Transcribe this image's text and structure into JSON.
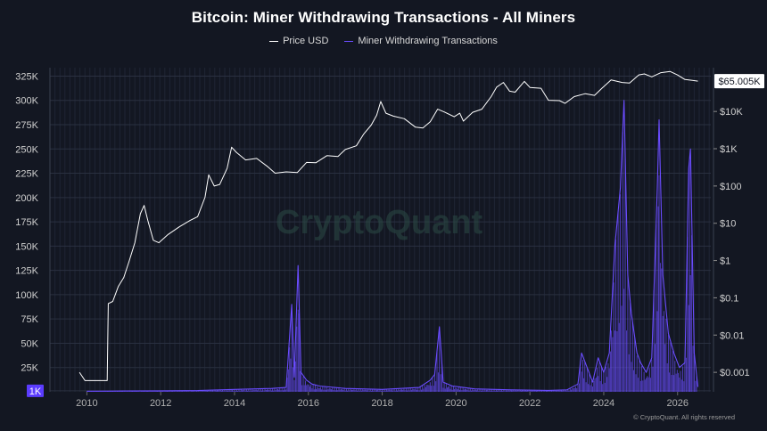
{
  "chart_data": {
    "type": "line",
    "title": "Bitcoin: Miner Withdrawing Transactions - All Miners",
    "legend": [
      {
        "name": "Price USD",
        "color": "#ffffff"
      },
      {
        "name": "Miner Withdrawing Transactions",
        "color": "#6a4cff"
      }
    ],
    "legend_position": "top-center",
    "grid": true,
    "x_axis": {
      "ticks": [
        "2010",
        "2012",
        "2014",
        "2016",
        "2018",
        "2020",
        "2022",
        "2024",
        "2026"
      ],
      "range": [
        2009.0,
        2026.9
      ]
    },
    "left_axis": {
      "ticks": [
        "325K",
        "300K",
        "275K",
        "250K",
        "225K",
        "200K",
        "175K",
        "150K",
        "125K",
        "100K",
        "75K",
        "50K",
        "25K",
        "1K"
      ],
      "tick_values": [
        325000,
        300000,
        275000,
        250000,
        225000,
        200000,
        175000,
        150000,
        125000,
        100000,
        75000,
        50000,
        25000,
        1000
      ],
      "highlight_tick": "1K",
      "range": [
        0,
        330000
      ]
    },
    "right_axis": {
      "scale": "log",
      "ticks": [
        "$10K",
        "$1K",
        "$100",
        "$10",
        "$1",
        "$0.1",
        "$0.01",
        "$0.001"
      ],
      "tick_values": [
        10000,
        1000,
        100,
        10,
        1,
        0.1,
        0.01,
        0.001
      ],
      "range": [
        0.0003,
        120000
      ],
      "current_label": "$65.005K",
      "current_value": 65005
    },
    "series": [
      {
        "name": "Price USD",
        "axis": "right",
        "color": "#ffffff",
        "points": [
          [
            2009.8,
            0.001
          ],
          [
            2009.95,
            0.0006
          ],
          [
            2010.1,
            0.0006
          ],
          [
            2010.3,
            0.0006
          ],
          [
            2010.55,
            0.0006
          ],
          [
            2010.58,
            0.07
          ],
          [
            2010.7,
            0.08
          ],
          [
            2010.85,
            0.2
          ],
          [
            2011.0,
            0.35
          ],
          [
            2011.15,
            1.0
          ],
          [
            2011.3,
            3.0
          ],
          [
            2011.45,
            18
          ],
          [
            2011.55,
            30
          ],
          [
            2011.65,
            12
          ],
          [
            2011.8,
            3.5
          ],
          [
            2011.95,
            3.0
          ],
          [
            2012.2,
            5
          ],
          [
            2012.5,
            8
          ],
          [
            2012.8,
            12
          ],
          [
            2013.0,
            15
          ],
          [
            2013.2,
            50
          ],
          [
            2013.3,
            200
          ],
          [
            2013.45,
            100
          ],
          [
            2013.6,
            110
          ],
          [
            2013.8,
            300
          ],
          [
            2013.92,
            1100
          ],
          [
            2014.05,
            800
          ],
          [
            2014.3,
            500
          ],
          [
            2014.6,
            550
          ],
          [
            2014.9,
            330
          ],
          [
            2015.1,
            220
          ],
          [
            2015.4,
            240
          ],
          [
            2015.7,
            230
          ],
          [
            2015.95,
            430
          ],
          [
            2016.2,
            420
          ],
          [
            2016.5,
            650
          ],
          [
            2016.8,
            620
          ],
          [
            2017.0,
            950
          ],
          [
            2017.3,
            1200
          ],
          [
            2017.5,
            2500
          ],
          [
            2017.7,
            4300
          ],
          [
            2017.85,
            8000
          ],
          [
            2017.96,
            18500
          ],
          [
            2018.1,
            9000
          ],
          [
            2018.3,
            7500
          ],
          [
            2018.6,
            6400
          ],
          [
            2018.9,
            3800
          ],
          [
            2019.1,
            3600
          ],
          [
            2019.3,
            5300
          ],
          [
            2019.5,
            11500
          ],
          [
            2019.7,
            9500
          ],
          [
            2019.95,
            7200
          ],
          [
            2020.1,
            9000
          ],
          [
            2020.2,
            5500
          ],
          [
            2020.45,
            9500
          ],
          [
            2020.7,
            11500
          ],
          [
            2020.95,
            25000
          ],
          [
            2021.1,
            45000
          ],
          [
            2021.28,
            60000
          ],
          [
            2021.45,
            35000
          ],
          [
            2021.6,
            33000
          ],
          [
            2021.85,
            64000
          ],
          [
            2022.0,
            44000
          ],
          [
            2022.3,
            42000
          ],
          [
            2022.5,
            20000
          ],
          [
            2022.8,
            19500
          ],
          [
            2022.95,
            16500
          ],
          [
            2023.2,
            25000
          ],
          [
            2023.5,
            30000
          ],
          [
            2023.75,
            27000
          ],
          [
            2023.95,
            42000
          ],
          [
            2024.2,
            70000
          ],
          [
            2024.5,
            60000
          ],
          [
            2024.7,
            58000
          ],
          [
            2024.95,
            96000
          ],
          [
            2025.1,
            102000
          ],
          [
            2025.3,
            85000
          ],
          [
            2025.55,
            110000
          ],
          [
            2025.8,
            118000
          ],
          [
            2026.0,
            95000
          ],
          [
            2026.2,
            72000
          ],
          [
            2026.4,
            68000
          ],
          [
            2026.55,
            65005
          ]
        ]
      },
      {
        "name": "Miner Withdrawing Transactions",
        "axis": "left",
        "color": "#6a4cff",
        "points": [
          [
            2010.0,
            600
          ],
          [
            2011.0,
            800
          ],
          [
            2012.0,
            1000
          ],
          [
            2013.0,
            1300
          ],
          [
            2014.0,
            2500
          ],
          [
            2015.0,
            3500
          ],
          [
            2015.4,
            4500
          ],
          [
            2015.55,
            90000
          ],
          [
            2015.62,
            15000
          ],
          [
            2015.72,
            130000
          ],
          [
            2015.8,
            20000
          ],
          [
            2015.95,
            12000
          ],
          [
            2016.1,
            8000
          ],
          [
            2016.3,
            6000
          ],
          [
            2017.0,
            3500
          ],
          [
            2018.0,
            2500
          ],
          [
            2019.0,
            4500
          ],
          [
            2019.3,
            12000
          ],
          [
            2019.42,
            18000
          ],
          [
            2019.55,
            67000
          ],
          [
            2019.65,
            10000
          ],
          [
            2019.9,
            6000
          ],
          [
            2020.5,
            3000
          ],
          [
            2021.5,
            2000
          ],
          [
            2022.5,
            1500
          ],
          [
            2023.0,
            2000
          ],
          [
            2023.3,
            8000
          ],
          [
            2023.4,
            40000
          ],
          [
            2023.55,
            25000
          ],
          [
            2023.7,
            10000
          ],
          [
            2023.85,
            35000
          ],
          [
            2024.0,
            20000
          ],
          [
            2024.15,
            40000
          ],
          [
            2024.3,
            150000
          ],
          [
            2024.45,
            210000
          ],
          [
            2024.55,
            300000
          ],
          [
            2024.65,
            120000
          ],
          [
            2024.75,
            80000
          ],
          [
            2024.9,
            40000
          ],
          [
            2025.0,
            30000
          ],
          [
            2025.15,
            20000
          ],
          [
            2025.3,
            35000
          ],
          [
            2025.45,
            210000
          ],
          [
            2025.5,
            280000
          ],
          [
            2025.6,
            120000
          ],
          [
            2025.75,
            60000
          ],
          [
            2025.9,
            40000
          ],
          [
            2026.05,
            25000
          ],
          [
            2026.2,
            30000
          ],
          [
            2026.3,
            230000
          ],
          [
            2026.35,
            250000
          ],
          [
            2026.45,
            40000
          ],
          [
            2026.55,
            5000
          ]
        ]
      }
    ],
    "watermark": "CryptoQuant",
    "footer": "© CryptoQuant. All rights reserved"
  }
}
